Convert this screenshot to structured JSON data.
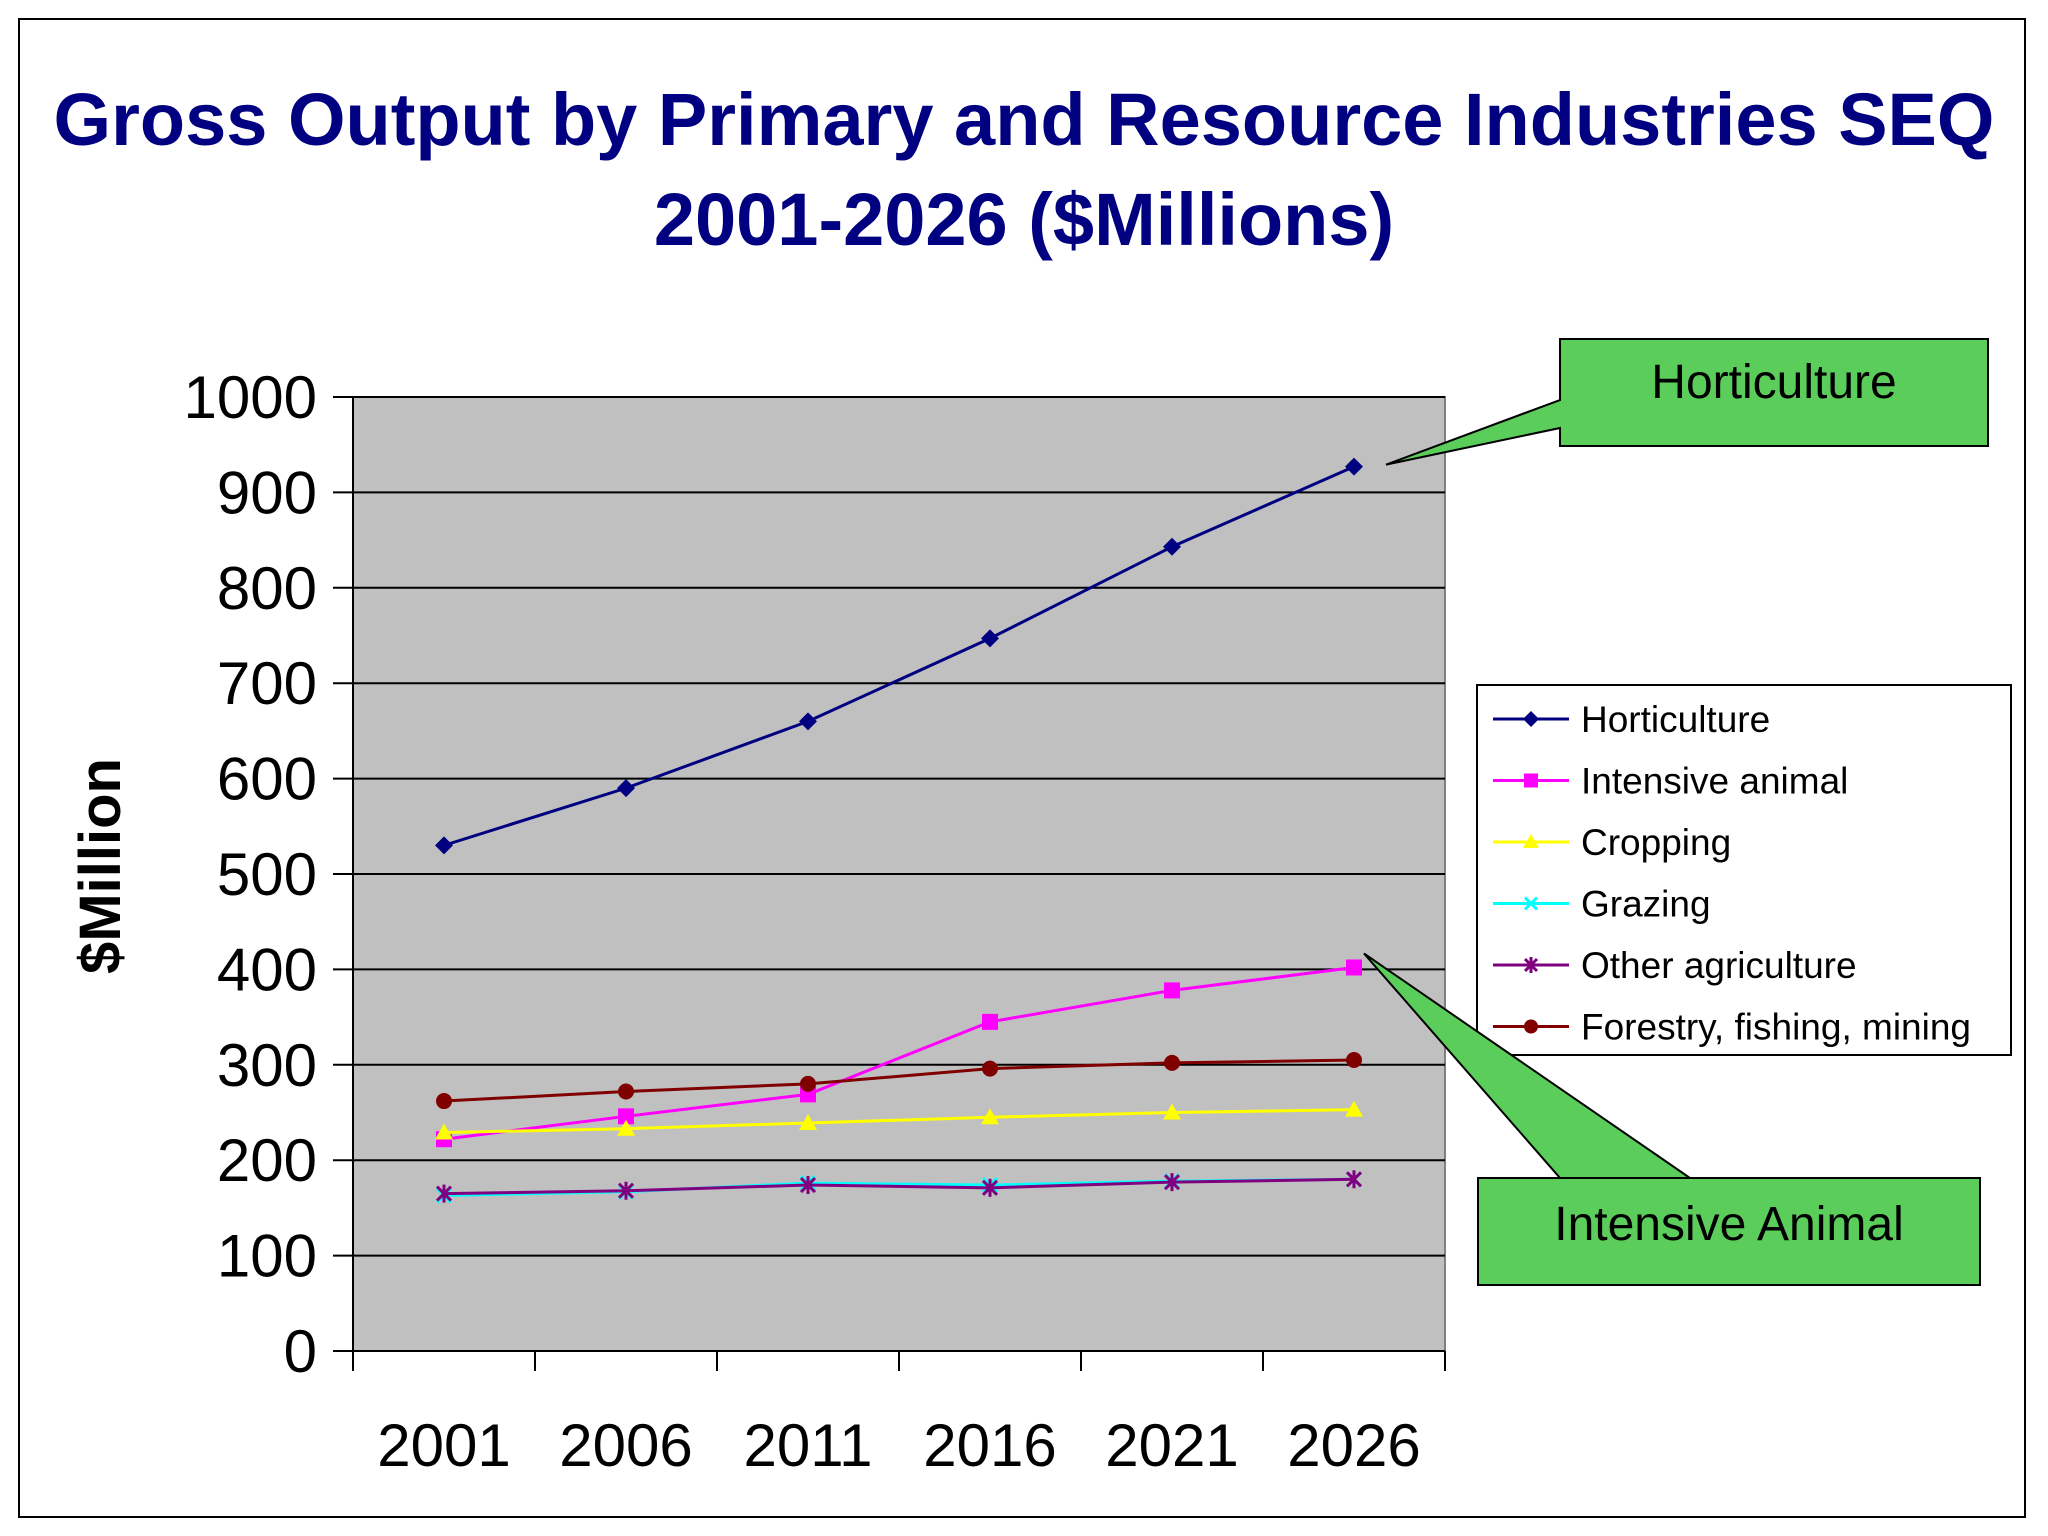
{
  "chart_data": {
    "type": "line",
    "title": "Gross Output by Primary and Resource Industries SEQ 2001-2026 ($Millions)",
    "ylabel": "$Million",
    "xlabel": "",
    "categories": [
      "2001",
      "2006",
      "2011",
      "2016",
      "2021",
      "2026"
    ],
    "ylim": [
      0,
      1000
    ],
    "yticks": [
      "0",
      "100",
      "200",
      "300",
      "400",
      "500",
      "600",
      "700",
      "800",
      "900",
      "1000"
    ],
    "grid": true,
    "legend_position": "right",
    "plot_background": "#C0C0C0",
    "series": [
      {
        "name": "Horticulture",
        "values": [
          530,
          590,
          660,
          747,
          843,
          927
        ],
        "color": "#000080",
        "marker": "diamond"
      },
      {
        "name": "Intensive animal",
        "values": [
          222,
          246,
          269,
          345,
          378,
          402
        ],
        "color": "#FF00FF",
        "marker": "square"
      },
      {
        "name": "Cropping",
        "values": [
          229,
          233,
          239,
          245,
          250,
          253
        ],
        "color": "#FFFF00",
        "marker": "triangle"
      },
      {
        "name": "Grazing",
        "values": [
          163,
          167,
          176,
          174,
          178,
          180
        ],
        "color": "#00FFFF",
        "marker": "x"
      },
      {
        "name": "Other agriculture",
        "values": [
          165,
          168,
          174,
          171,
          177,
          180
        ],
        "color": "#800080",
        "marker": "star"
      },
      {
        "name": "Forestry, fishing, mining",
        "values": [
          262,
          272,
          280,
          296,
          302,
          305
        ],
        "color": "#800000",
        "marker": "circle"
      }
    ],
    "annotations": [
      {
        "text": "Horticulture",
        "points_to": "Horticulture 2026",
        "fill": "#5ACD5A"
      },
      {
        "text": "Intensive Animal",
        "points_to": "Intensive animal 2026",
        "fill": "#5ACD5A"
      }
    ]
  }
}
